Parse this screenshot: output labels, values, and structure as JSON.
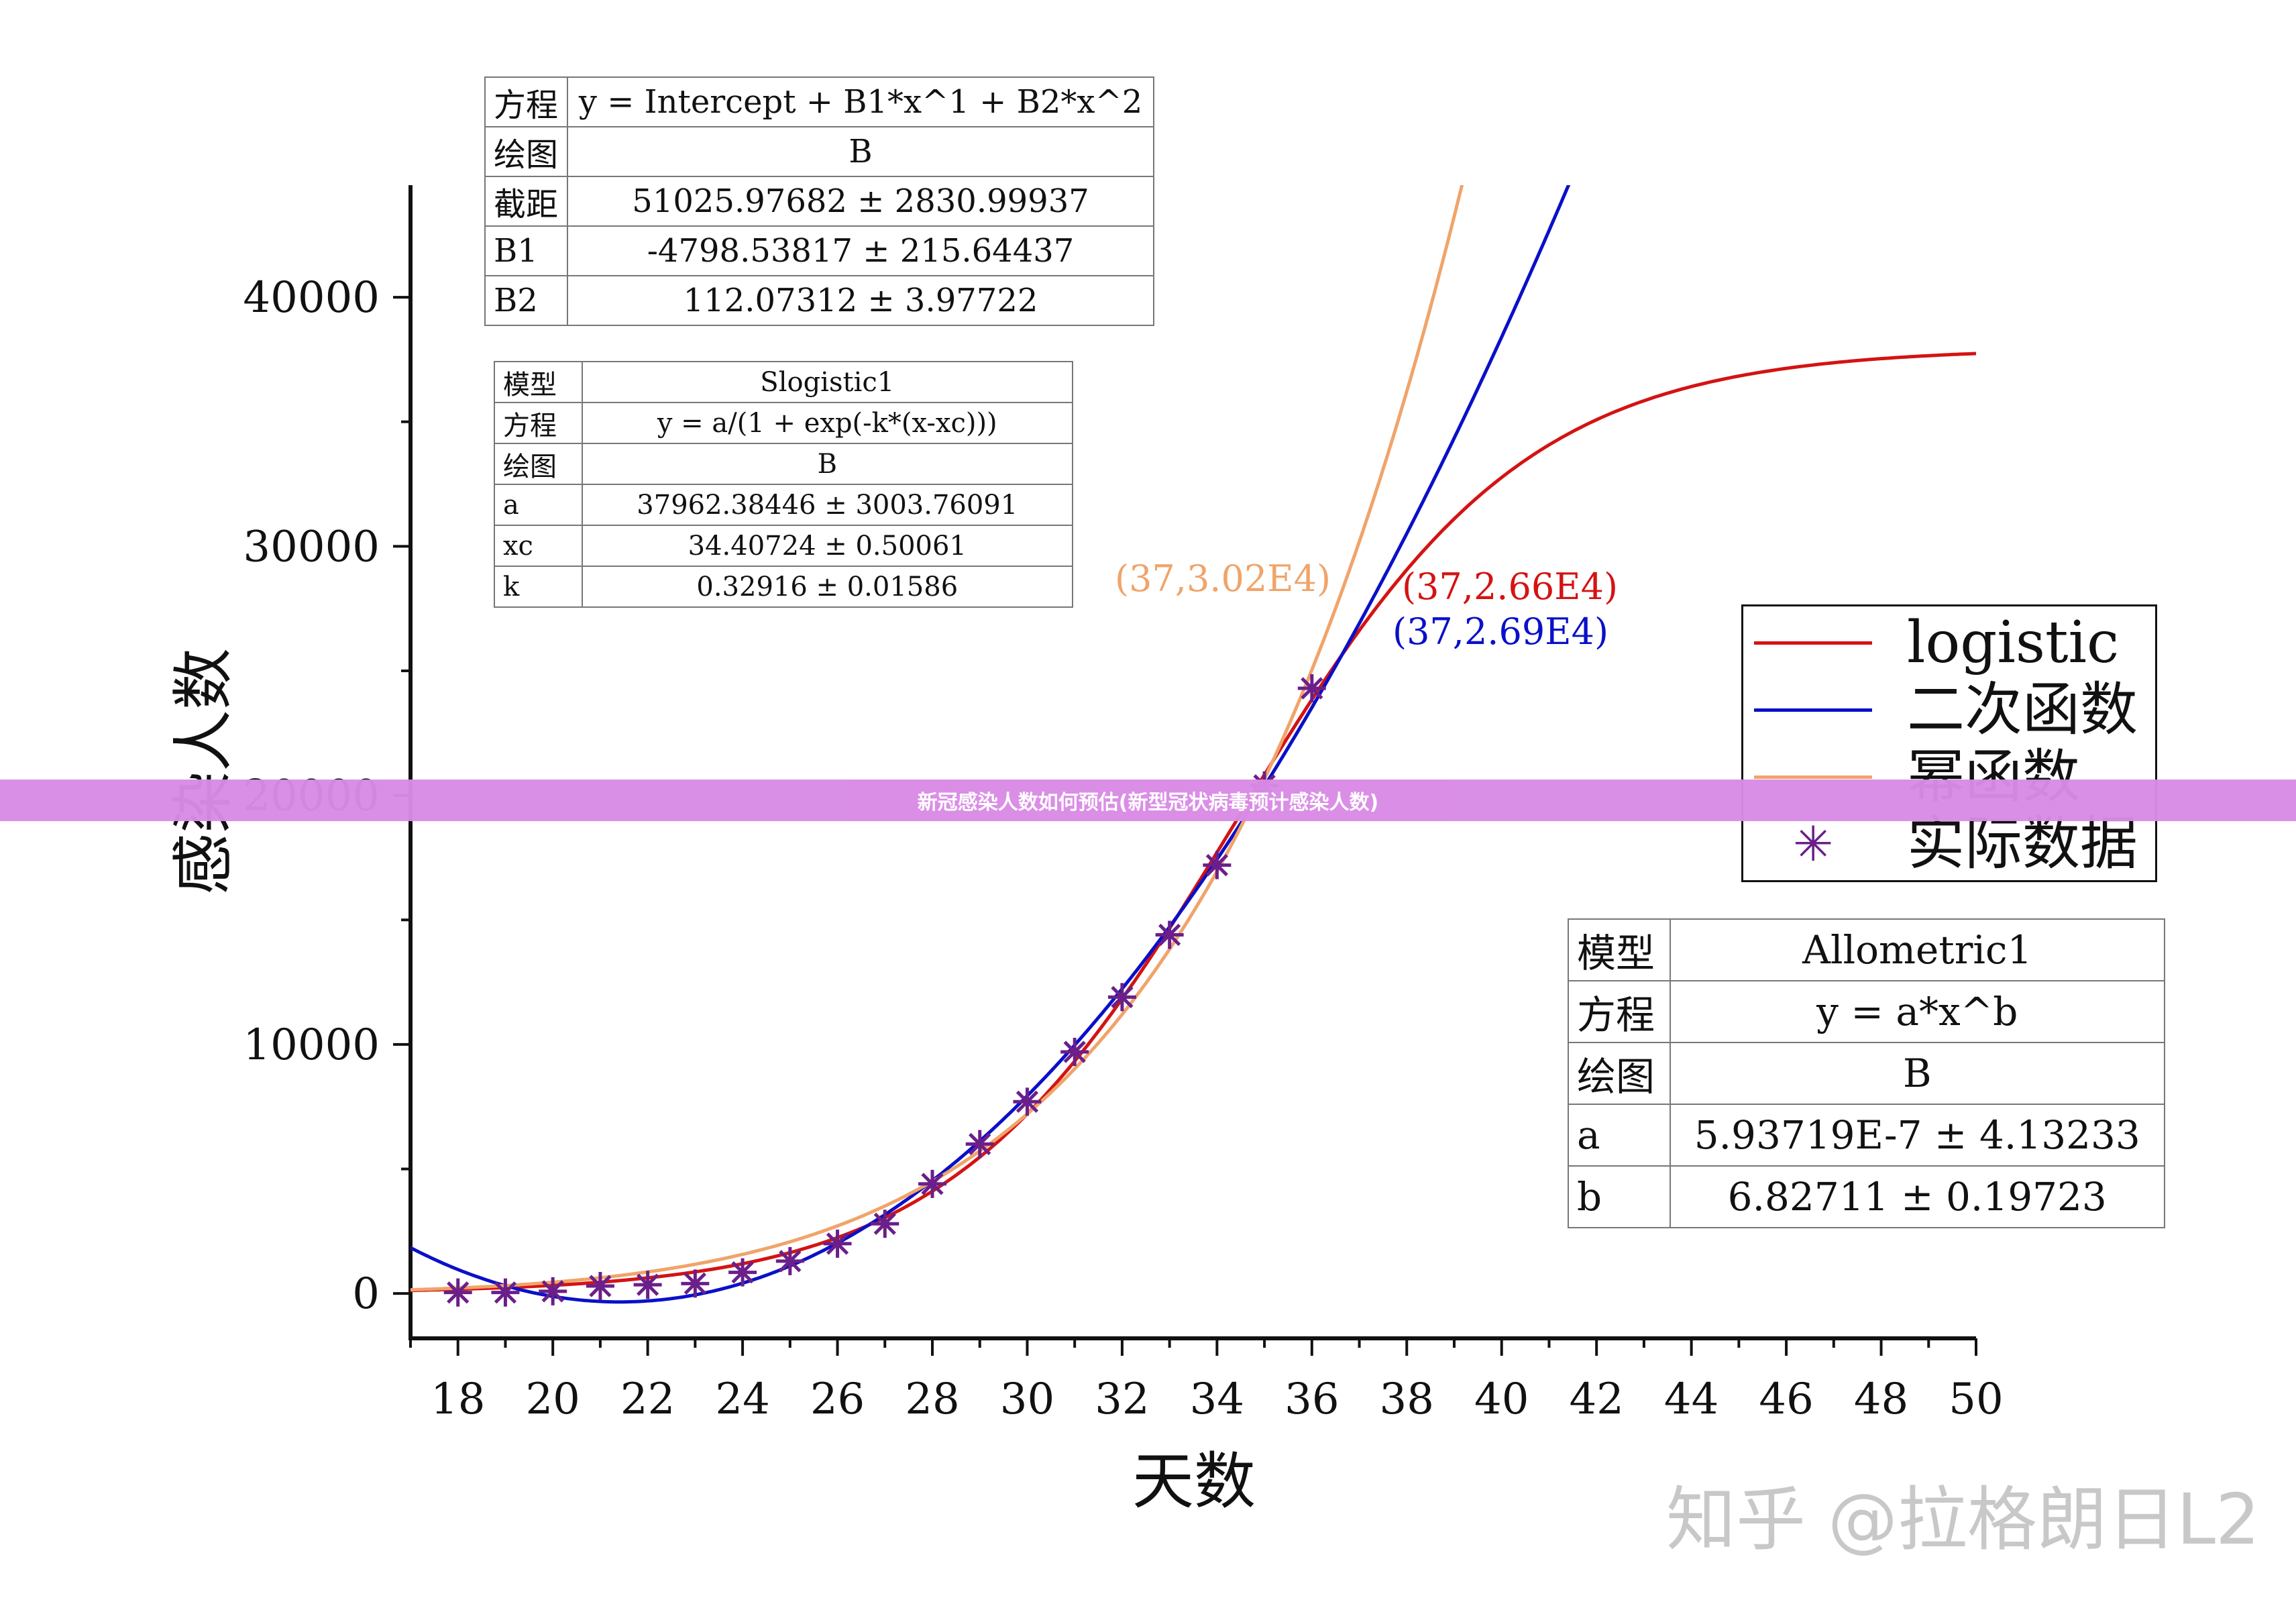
{
  "chart_data": {
    "type": "line",
    "xlabel": "天数",
    "ylabel": "感染人数",
    "xlim": [
      17,
      50
    ],
    "ylim": [
      -1800,
      44500
    ],
    "x_ticks": [
      "18",
      "20",
      "22",
      "24",
      "26",
      "28",
      "30",
      "32",
      "34",
      "36",
      "38",
      "40",
      "42",
      "44",
      "46",
      "48",
      "50"
    ],
    "y_ticks": [
      "0",
      "10000",
      "20000",
      "30000",
      "40000"
    ],
    "grid": false,
    "legend_position": "right",
    "series": [
      {
        "name": "logistic",
        "kind": "line",
        "color": "#d41313",
        "model": "logistic",
        "params": {
          "a": 37962.38446,
          "xc": 34.40724,
          "k": 0.32916
        },
        "x_range": [
          17,
          50
        ]
      },
      {
        "name": "二次函数",
        "kind": "line",
        "color": "#0a10c8",
        "model": "quadratic",
        "params": {
          "intercept": 51025.97682,
          "b1": -4798.53817,
          "b2": 112.07312
        },
        "x_range": [
          17,
          41.6
        ]
      },
      {
        "name": "幂函数",
        "kind": "line",
        "color": "#f0a46a",
        "model": "allometric",
        "params": {
          "a": 5.93719e-07,
          "b": 6.82711
        },
        "x_range": [
          17,
          39.3
        ]
      },
      {
        "name": "实际数据",
        "kind": "scatter",
        "color": "#6b1f8a",
        "x": [
          18,
          19,
          20,
          21,
          22,
          23,
          24,
          25,
          26,
          27,
          28,
          29,
          30,
          31,
          32,
          33,
          34,
          35,
          36
        ],
        "y": [
          40,
          40,
          90,
          300,
          350,
          400,
          850,
          1300,
          2000,
          2800,
          4400,
          6000,
          7700,
          9700,
          11900,
          14400,
          17200,
          20400,
          24300
        ]
      }
    ],
    "annotations": [
      {
        "text": "(37,3.02E4)",
        "color": "#f0a46a"
      },
      {
        "text": "(37,2.66E4)",
        "color": "#d41313"
      },
      {
        "text": "(37,2.69E4)",
        "color": "#0a10c8"
      }
    ]
  },
  "tables": {
    "quad": {
      "rows": [
        {
          "k": "方程",
          "v": "y = Intercept + B1*x^1 + B2*x^2"
        },
        {
          "k": "绘图",
          "v": "B"
        },
        {
          "k": "截距",
          "v": "51025.97682 ± 2830.99937"
        },
        {
          "k": "B1",
          "v": "-4798.53817 ± 215.64437"
        },
        {
          "k": "B2",
          "v": "112.07312 ± 3.97722"
        }
      ]
    },
    "logistic": {
      "rows": [
        {
          "k": "模型",
          "v": "Slogistic1"
        },
        {
          "k": "方程",
          "v": "y = a/(1 + exp(-k*(x-xc)))"
        },
        {
          "k": "绘图",
          "v": "B"
        },
        {
          "k": "a",
          "v": "37962.38446 ± 3003.76091"
        },
        {
          "k": "xc",
          "v": "34.40724 ± 0.50061"
        },
        {
          "k": "k",
          "v": "0.32916 ± 0.01586"
        }
      ]
    },
    "allometric": {
      "rows": [
        {
          "k": "模型",
          "v": "Allometric1"
        },
        {
          "k": "方程",
          "v": "y = a*x^b"
        },
        {
          "k": "绘图",
          "v": "B"
        },
        {
          "k": "a",
          "v": "5.93719E-7 ± 4.13233"
        },
        {
          "k": "b",
          "v": "6.82711 ± 0.19723"
        }
      ]
    }
  },
  "banner": {
    "text": "新冠感染人数如何预估(新型冠状病毒预计感染人数)"
  },
  "watermark": {
    "text": "知乎 @拉格朗日L2"
  }
}
